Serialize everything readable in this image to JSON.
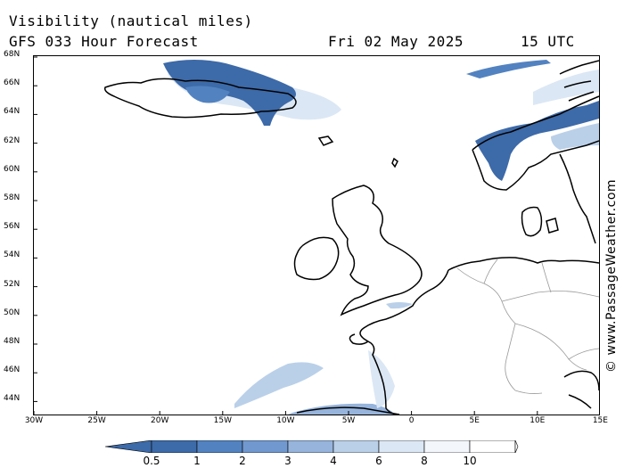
{
  "header": {
    "line1": "Visibility (nautical miles)",
    "line2": "GFS 033 Hour Forecast",
    "date": "Fri 02 May 2025",
    "time": "15 UTC"
  },
  "credit": "© www.PassageWeather.com",
  "axes": {
    "lat_labels": [
      "68N",
      "66N",
      "64N",
      "62N",
      "60N",
      "58N",
      "56N",
      "54N",
      "52N",
      "50N",
      "48N",
      "46N",
      "44N"
    ],
    "lon_labels": [
      "30W",
      "25W",
      "20W",
      "15W",
      "10W",
      "5W",
      "0",
      "5E",
      "10E",
      "15E"
    ]
  },
  "legend": {
    "labels": [
      "0.5",
      "1",
      "2",
      "3",
      "4",
      "6",
      "8",
      "10"
    ],
    "colors": [
      "#3d6aa8",
      "#5282c0",
      "#7198cf",
      "#96b4dc",
      "#bad0e9",
      "#dbe7f4",
      "#f3f7fc",
      "#ffffff"
    ]
  },
  "map": {
    "land_outline_color": "#000000",
    "border_color": "#999999",
    "fog_colors": {
      "dense": "#3d6aa8",
      "medium": "#96b4dc",
      "light": "#dbe7f4"
    }
  }
}
